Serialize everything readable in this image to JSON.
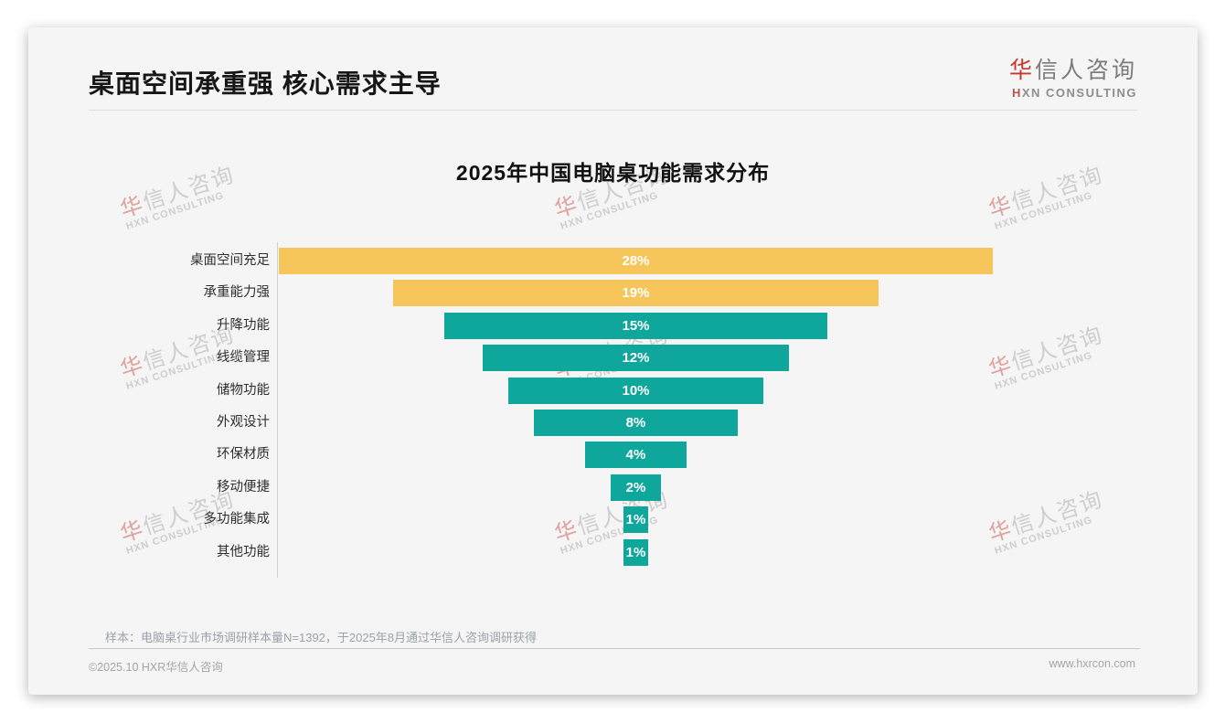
{
  "page": {
    "title": "桌面空间承重强 核心需求主导",
    "logo": {
      "cn_accent": "华",
      "cn_rest": "信人咨询",
      "en_accent": "H",
      "en_rest": "XN CONSULTING"
    },
    "watermark": {
      "cn_accent": "华",
      "cn_rest": "信人咨询",
      "en": "HXN CONSULTING"
    },
    "sample_note": "样本：电脑桌行业市场调研样本量N=1392，于2025年8月通过华信人咨询调研获得",
    "footer_left": "©2025.10 HXR华信人咨询",
    "footer_right": "www.hxrcon.com"
  },
  "chart_data": {
    "type": "bar",
    "variant": "horizontal-centered-funnel",
    "title": "2025年中国电脑桌功能需求分布",
    "categories": [
      "桌面空间充足",
      "承重能力强",
      "升降功能",
      "线缆管理",
      "储物功能",
      "外观设计",
      "环保材质",
      "移动便捷",
      "多功能集成",
      "其他功能"
    ],
    "values": [
      28,
      19,
      15,
      12,
      10,
      8,
      4,
      2,
      1,
      1
    ],
    "labels": [
      "28%",
      "19%",
      "15%",
      "12%",
      "10%",
      "8%",
      "4%",
      "2%",
      "1%",
      "1%"
    ],
    "unit": "%",
    "xlim": [
      0,
      28
    ],
    "highlight_count": 2,
    "colors": {
      "highlight": "#F6C65B",
      "normal": "#0FA69C",
      "value_label": "#FFFFFF"
    },
    "grid": false,
    "legend": null
  }
}
